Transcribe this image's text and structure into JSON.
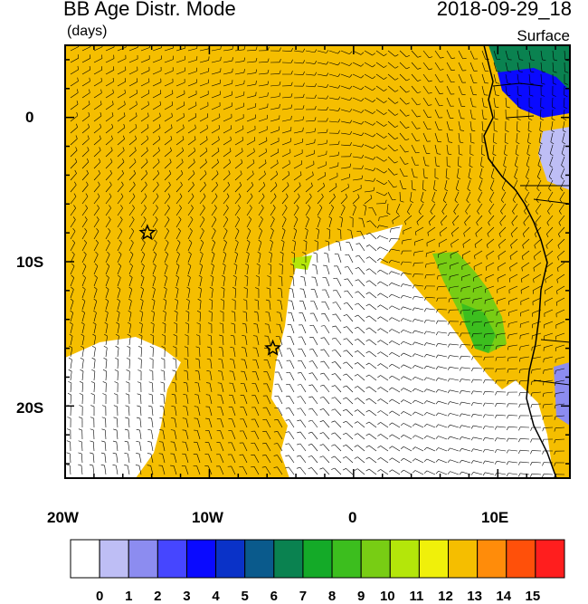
{
  "header": {
    "title": "BB Age Distr. Mode",
    "units": "(days)",
    "datetime": "2018-09-29_18",
    "level": "Surface"
  },
  "axes": {
    "x_ticks": [
      "20W",
      "10W",
      "0",
      "10E"
    ],
    "y_ticks": [
      "0",
      "10S",
      "20S"
    ],
    "lon_range": [
      -20,
      15
    ],
    "lat_range": [
      -25,
      5
    ]
  },
  "colorbar": {
    "labels": [
      "0",
      "1",
      "2",
      "3",
      "4",
      "5",
      "6",
      "7",
      "8",
      "9",
      "10",
      "11",
      "12",
      "13",
      "14",
      "15"
    ],
    "colors": [
      "#ffffff",
      "#bebef5",
      "#8c8cf0",
      "#4646ff",
      "#0a0aff",
      "#0a32c8",
      "#0a5a8c",
      "#0a8250",
      "#14aa28",
      "#3cbe1e",
      "#78cd14",
      "#b4e60a",
      "#f0f00a",
      "#f5be00",
      "#ff8c0a",
      "#ff500a",
      "#ff1e1e"
    ]
  },
  "markers": [
    {
      "name": "star-marker",
      "lon": -14.3,
      "lat": -8
    },
    {
      "name": "star-marker",
      "lon": -5.6,
      "lat": -16
    }
  ],
  "fill_colors": {
    "dominant": "#f5be00",
    "clean": "#ffffff",
    "green": "#3cbe1e",
    "dark_green": "#0a8250",
    "blue": "#0a0aff"
  }
}
